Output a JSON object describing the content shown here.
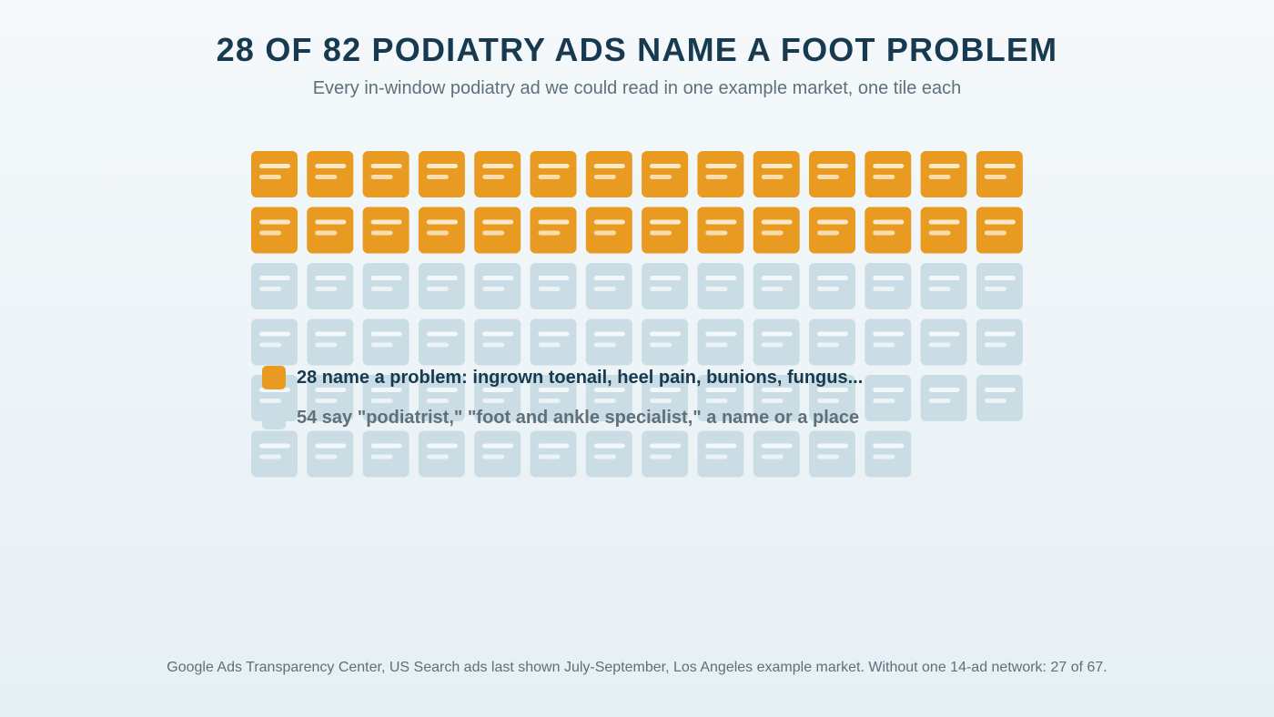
{
  "title": "28 OF 82 PODIATRY ADS NAME A FOOT PROBLEM",
  "subtitle": "Every in-window podiatry ad we could read in one example market, one tile each",
  "colors": {
    "highlight": "#e99a21",
    "muted": "#cbdde4",
    "title": "#173a50",
    "muted_text": "#5f6f7b",
    "tile_line_highlight": "#fbe9c8",
    "tile_line_muted": "#f2f7f9"
  },
  "chart_data": {
    "type": "waffle",
    "total": 82,
    "columns": 14,
    "categories": [
      {
        "label": "28 name a problem: ingrown toenail, heel pain, bunions, fungus...",
        "value": 28,
        "color": "#e99a21"
      },
      {
        "label": "54 say \"podiatrist,\" \"foot and ankle specialist,\" a name or a place",
        "value": 54,
        "color": "#cbdde4"
      }
    ]
  },
  "legend": {
    "items": [
      {
        "label": "28 name a problem: ingrown toenail, heel pain, bunions, fungus...",
        "color": "#e99a21",
        "text_color": "#173a50"
      },
      {
        "label": "54 say \"podiatrist,\" \"foot and ankle specialist,\" a name or a place",
        "color": "#cbdde4",
        "text_color": "#5f6f7b"
      }
    ]
  },
  "footnote": "Google Ads Transparency Center, US Search ads last shown July-September, Los Angeles example market. Without one 14-ad network: 27 of 67."
}
